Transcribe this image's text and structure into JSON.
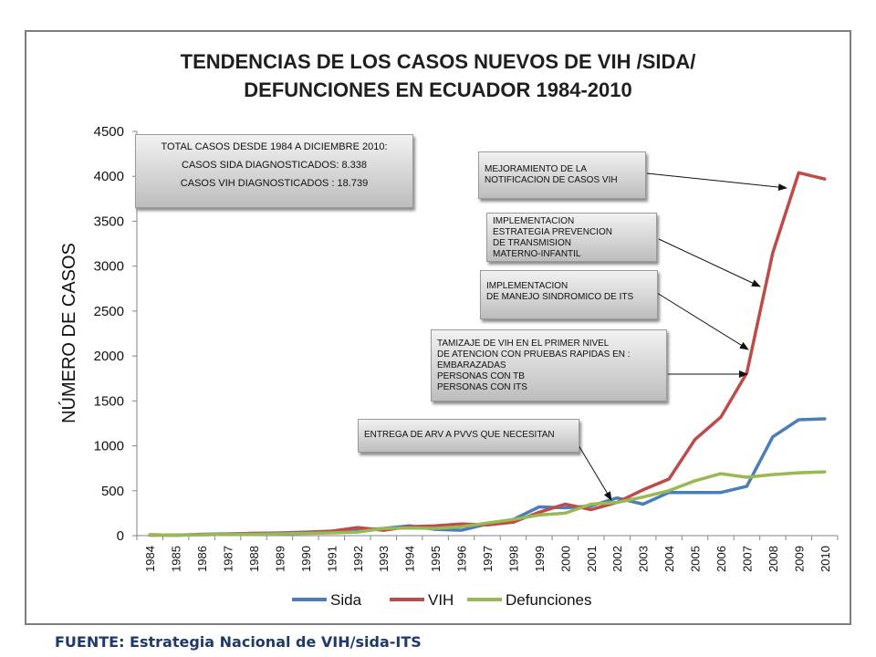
{
  "chart_data": {
    "type": "line",
    "title_lines": [
      "TENDENCIAS DE LOS CASOS NUEVOS DE VIH /SIDA/",
      "DEFUNCIONES EN ECUADOR 1984-2010"
    ],
    "ylabel": "NÚMERO DE CASOS",
    "xlabel": "",
    "ylim": [
      0,
      4500
    ],
    "yticks": [
      "0",
      "500",
      "1000",
      "1500",
      "2000",
      "2500",
      "3000",
      "3500",
      "4000",
      "4500"
    ],
    "categories": [
      "1984",
      "1985",
      "1986",
      "1987",
      "1988",
      "1989",
      "1990",
      "1991",
      "1992",
      "1993",
      "1994",
      "1995",
      "1996",
      "1997",
      "1998",
      "1999",
      "2000",
      "2001",
      "2002",
      "2003",
      "2004",
      "2005",
      "2006",
      "2007",
      "2008",
      "2009",
      "2010"
    ],
    "grid": false,
    "legend": "bottom",
    "series": [
      {
        "name": "Sida",
        "color": "#4a7ebb",
        "values": [
          10,
          5,
          15,
          20,
          25,
          30,
          40,
          50,
          60,
          80,
          110,
          70,
          60,
          130,
          180,
          320,
          310,
          330,
          420,
          350,
          480,
          480,
          480,
          550,
          1100,
          1290,
          1300
        ]
      },
      {
        "name": "VIH",
        "color": "#be4b48",
        "values": [
          5,
          5,
          10,
          15,
          25,
          25,
          35,
          50,
          90,
          60,
          100,
          110,
          130,
          120,
          150,
          260,
          350,
          290,
          370,
          510,
          630,
          1070,
          1320,
          1810,
          3150,
          4040,
          3970
        ]
      },
      {
        "name": "Defunciones",
        "color": "#98b954",
        "values": [
          10,
          5,
          10,
          15,
          15,
          20,
          25,
          30,
          40,
          80,
          85,
          80,
          100,
          140,
          180,
          230,
          250,
          350,
          370,
          430,
          500,
          610,
          690,
          650,
          680,
          700,
          710
        ]
      }
    ]
  },
  "notes": {
    "totals": "TOTAL CASOS DESDE 1984 A DICIEMBRE 2010:\nCASOS SIDA DIAGNOSTICADOS: 8.338\nCASOS VIH   DIAGNOSTICADOS : 18.739",
    "mejoramiento": "MEJORAMIENTO DE LA\nNOTIFICACION DE CASOS VIH",
    "prevencion": "IMPLEMENTACION\nESTRATEGIA PREVENCION\nDE TRANSMISION\nMATERNO-INFANTIL",
    "sindromico": "IMPLEMENTACION\n DE MANEJO SINDROMICO DE ITS",
    "tamizaje": "TAMIZAJE DE VIH EN EL PRIMER NIVEL\nDE ATENCION CON  PRUEBAS RAPIDAS EN :\nEMBARAZADAS\nPERSONAS CON TB\nPERSONAS CON ITS",
    "entrega": "ENTREGA DE ARV A PVVS QUE NECESITAN"
  },
  "source": "FUENTE: Estrategia Nacional de VIH/sida-ITS"
}
